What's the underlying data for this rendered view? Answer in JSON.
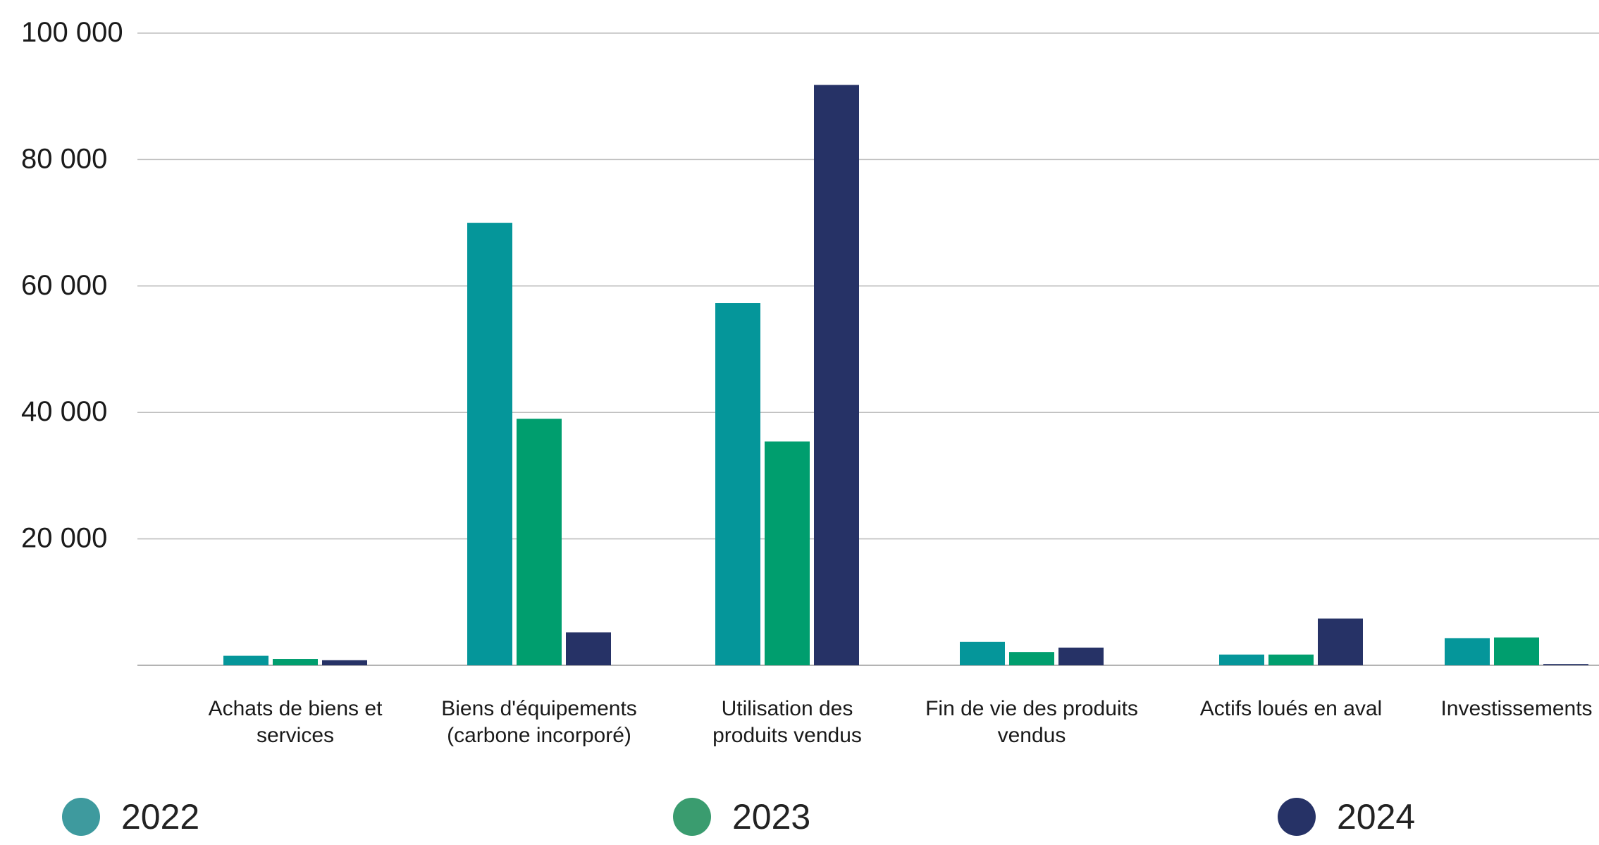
{
  "chart_data": {
    "type": "bar",
    "title": "",
    "xlabel": "",
    "ylabel": "",
    "ylim": [
      0,
      100000
    ],
    "grid": true,
    "legend_position": "bottom",
    "yticks": [
      {
        "value": 100000,
        "label": "100 000"
      },
      {
        "value": 80000,
        "label": "80 000"
      },
      {
        "value": 60000,
        "label": "60 000"
      },
      {
        "value": 40000,
        "label": "40 000"
      },
      {
        "value": 20000,
        "label": "20 000"
      }
    ],
    "gridlines": [
      100000,
      80000,
      60000,
      40000,
      20000,
      0
    ],
    "categories": [
      [
        "Achats de biens et",
        "services"
      ],
      [
        "Biens d'équipements",
        "(carbone incorporé)"
      ],
      [
        "Utilisation des",
        "produits vendus"
      ],
      [
        "Fin de vie des produits",
        "vendus"
      ],
      [
        "Actifs loués en aval"
      ],
      [
        "Investissements"
      ]
    ],
    "series": [
      {
        "name": "2022",
        "color": "#05969a",
        "values": [
          1500,
          70000,
          57300,
          3700,
          1700,
          4300
        ]
      },
      {
        "name": "2023",
        "color": "#009e6e",
        "values": [
          1000,
          39000,
          35400,
          2100,
          1700,
          4400
        ]
      },
      {
        "name": "2024",
        "color": "#263266",
        "values": [
          800,
          5200,
          91800,
          2800,
          7400,
          200
        ]
      }
    ]
  },
  "legend": {
    "items": [
      {
        "label": "2022",
        "color": "#3e9a9e"
      },
      {
        "label": "2023",
        "color": "#3a9c6f"
      },
      {
        "label": "2024",
        "color": "#263266"
      }
    ]
  }
}
